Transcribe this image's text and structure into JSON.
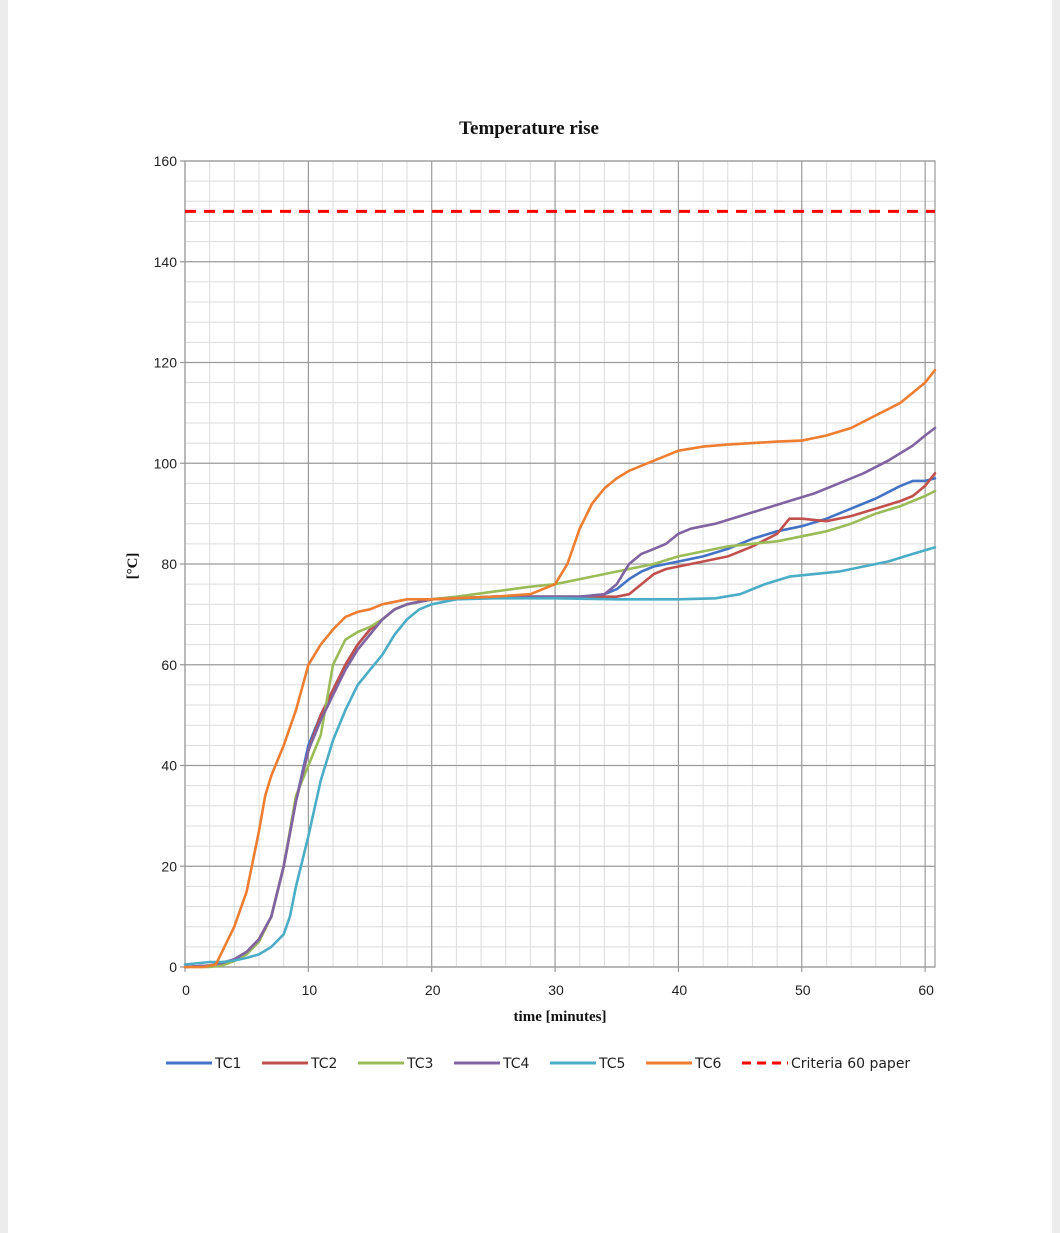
{
  "chart_data": {
    "type": "line",
    "title": "Temperature rise",
    "xlabel": "time [minutes]",
    "ylabel": "[°C]",
    "xlim": [
      0,
      60.8
    ],
    "ylim": [
      0,
      160
    ],
    "x_ticks": [
      0,
      10,
      20,
      30,
      40,
      50,
      60
    ],
    "y_ticks": [
      0,
      20,
      40,
      60,
      80,
      100,
      120,
      140,
      160
    ],
    "grid": true,
    "minor_grid": true,
    "legend_position": "bottom",
    "series": [
      {
        "name": "TC1",
        "color": "#4472c4",
        "style": "solid",
        "points": [
          [
            0,
            0
          ],
          [
            2,
            0.3
          ],
          [
            3,
            0.8
          ],
          [
            4,
            1.5
          ],
          [
            5,
            3
          ],
          [
            6,
            5.5
          ],
          [
            7,
            10
          ],
          [
            8,
            20
          ],
          [
            9,
            33
          ],
          [
            10,
            44
          ],
          [
            11,
            50
          ],
          [
            12,
            55
          ],
          [
            13,
            60
          ],
          [
            14,
            64
          ],
          [
            15,
            67
          ],
          [
            16,
            69
          ],
          [
            17,
            71
          ],
          [
            18,
            72
          ],
          [
            20,
            73
          ],
          [
            25,
            73.5
          ],
          [
            30,
            73.5
          ],
          [
            33,
            73.5
          ],
          [
            34,
            74
          ],
          [
            35,
            75
          ],
          [
            36,
            77
          ],
          [
            37,
            78.5
          ],
          [
            38,
            79.5
          ],
          [
            40,
            80.5
          ],
          [
            42,
            81.5
          ],
          [
            44,
            83
          ],
          [
            46,
            85
          ],
          [
            48,
            86.5
          ],
          [
            50,
            87.5
          ],
          [
            52,
            89
          ],
          [
            54,
            91
          ],
          [
            56,
            93
          ],
          [
            58,
            95.5
          ],
          [
            59,
            96.5
          ],
          [
            60,
            96.5
          ],
          [
            60.8,
            97
          ]
        ]
      },
      {
        "name": "TC2",
        "color": "#c0504d",
        "style": "solid",
        "points": [
          [
            0,
            0
          ],
          [
            2,
            0.3
          ],
          [
            3,
            0.8
          ],
          [
            4,
            1.5
          ],
          [
            5,
            3
          ],
          [
            6,
            5.5
          ],
          [
            7,
            10
          ],
          [
            8,
            20
          ],
          [
            9,
            33
          ],
          [
            10,
            43
          ],
          [
            11,
            50
          ],
          [
            12,
            55
          ],
          [
            13,
            60
          ],
          [
            14,
            64
          ],
          [
            15,
            67
          ],
          [
            16,
            69
          ],
          [
            17,
            71
          ],
          [
            18,
            72
          ],
          [
            20,
            73
          ],
          [
            25,
            73.5
          ],
          [
            30,
            73.5
          ],
          [
            34,
            73.5
          ],
          [
            35,
            73.5
          ],
          [
            36,
            74
          ],
          [
            37,
            76
          ],
          [
            38,
            78
          ],
          [
            39,
            79
          ],
          [
            40,
            79.5
          ],
          [
            42,
            80.5
          ],
          [
            44,
            81.5
          ],
          [
            46,
            83.5
          ],
          [
            48,
            86
          ],
          [
            49,
            89
          ],
          [
            50,
            89
          ],
          [
            52,
            88.5
          ],
          [
            54,
            89.5
          ],
          [
            56,
            91
          ],
          [
            58,
            92.5
          ],
          [
            59,
            93.5
          ],
          [
            60,
            95.5
          ],
          [
            60.8,
            98
          ]
        ]
      },
      {
        "name": "TC3",
        "color": "#9bbb59",
        "style": "solid",
        "points": [
          [
            0,
            0
          ],
          [
            2,
            0
          ],
          [
            3,
            0.3
          ],
          [
            4,
            1.2
          ],
          [
            5,
            2.5
          ],
          [
            6,
            5
          ],
          [
            7,
            10
          ],
          [
            8,
            20
          ],
          [
            9,
            34
          ],
          [
            10,
            40
          ],
          [
            11,
            46
          ],
          [
            11.5,
            53
          ],
          [
            12,
            60
          ],
          [
            13,
            65
          ],
          [
            14,
            66.5
          ],
          [
            15,
            67.5
          ],
          [
            16,
            69
          ],
          [
            17,
            71
          ],
          [
            18,
            72
          ],
          [
            20,
            73
          ],
          [
            22,
            73.5
          ],
          [
            25,
            74.5
          ],
          [
            28,
            75.5
          ],
          [
            30,
            76
          ],
          [
            33,
            77.5
          ],
          [
            36,
            79
          ],
          [
            38,
            80
          ],
          [
            40,
            81.5
          ],
          [
            42,
            82.5
          ],
          [
            44,
            83.5
          ],
          [
            46,
            84
          ],
          [
            48,
            84.5
          ],
          [
            50,
            85.5
          ],
          [
            52,
            86.5
          ],
          [
            54,
            88
          ],
          [
            56,
            90
          ],
          [
            58,
            91.5
          ],
          [
            60,
            93.5
          ],
          [
            60.8,
            94.5
          ]
        ]
      },
      {
        "name": "TC4",
        "color": "#8064a2",
        "style": "solid",
        "points": [
          [
            0,
            0
          ],
          [
            2,
            0.3
          ],
          [
            3,
            0.8
          ],
          [
            4,
            1.5
          ],
          [
            5,
            3
          ],
          [
            6,
            5.5
          ],
          [
            7,
            10
          ],
          [
            8,
            20
          ],
          [
            9,
            33
          ],
          [
            10,
            43
          ],
          [
            11,
            49
          ],
          [
            12,
            54
          ],
          [
            13,
            59
          ],
          [
            14,
            63
          ],
          [
            15,
            66
          ],
          [
            16,
            69
          ],
          [
            17,
            71
          ],
          [
            18,
            72
          ],
          [
            20,
            73
          ],
          [
            25,
            73.5
          ],
          [
            30,
            73.5
          ],
          [
            32,
            73.5
          ],
          [
            34,
            74
          ],
          [
            35,
            76
          ],
          [
            36,
            80
          ],
          [
            37,
            82
          ],
          [
            38,
            83
          ],
          [
            39,
            84
          ],
          [
            40,
            86
          ],
          [
            41,
            87
          ],
          [
            43,
            88
          ],
          [
            45,
            89.5
          ],
          [
            47,
            91
          ],
          [
            49,
            92.5
          ],
          [
            51,
            94
          ],
          [
            53,
            96
          ],
          [
            55,
            98
          ],
          [
            57,
            100.5
          ],
          [
            59,
            103.5
          ],
          [
            60,
            105.5
          ],
          [
            60.8,
            107
          ]
        ]
      },
      {
        "name": "TC5",
        "color": "#4bacc6",
        "style": "solid",
        "points": [
          [
            0,
            0.5
          ],
          [
            2,
            1
          ],
          [
            3,
            1
          ],
          [
            4,
            1.3
          ],
          [
            5,
            1.8
          ],
          [
            6,
            2.5
          ],
          [
            7,
            4
          ],
          [
            8,
            6.5
          ],
          [
            8.5,
            10
          ],
          [
            9,
            16
          ],
          [
            10,
            26
          ],
          [
            11,
            37
          ],
          [
            12,
            45
          ],
          [
            13,
            51
          ],
          [
            14,
            56
          ],
          [
            15,
            59
          ],
          [
            16,
            62
          ],
          [
            17,
            66
          ],
          [
            18,
            69
          ],
          [
            19,
            71
          ],
          [
            20,
            72
          ],
          [
            22,
            73
          ],
          [
            25,
            73.2
          ],
          [
            30,
            73.2
          ],
          [
            35,
            73
          ],
          [
            40,
            73
          ],
          [
            43,
            73.2
          ],
          [
            45,
            74
          ],
          [
            47,
            76
          ],
          [
            49,
            77.5
          ],
          [
            51,
            78
          ],
          [
            53,
            78.5
          ],
          [
            55,
            79.5
          ],
          [
            57,
            80.5
          ],
          [
            59,
            82
          ],
          [
            60.8,
            83.3
          ]
        ]
      },
      {
        "name": "TC6",
        "color": "#ed7d31",
        "style": "solid",
        "points": [
          [
            0,
            0
          ],
          [
            1.5,
            0
          ],
          [
            2.5,
            0.5
          ],
          [
            3,
            3
          ],
          [
            4,
            8
          ],
          [
            5,
            15
          ],
          [
            6,
            27
          ],
          [
            6.5,
            34
          ],
          [
            7,
            38
          ],
          [
            8,
            44
          ],
          [
            9,
            51
          ],
          [
            10,
            60
          ],
          [
            11,
            64
          ],
          [
            12,
            67
          ],
          [
            13,
            69.5
          ],
          [
            14,
            70.5
          ],
          [
            15,
            71
          ],
          [
            16,
            72
          ],
          [
            17,
            72.5
          ],
          [
            18,
            73
          ],
          [
            20,
            73
          ],
          [
            25,
            73.5
          ],
          [
            28,
            74
          ],
          [
            30,
            76
          ],
          [
            31,
            80
          ],
          [
            32,
            87
          ],
          [
            33,
            92
          ],
          [
            34,
            95
          ],
          [
            35,
            97
          ],
          [
            36,
            98.5
          ],
          [
            38,
            100.5
          ],
          [
            40,
            102.5
          ],
          [
            42,
            103.3
          ],
          [
            44,
            103.7
          ],
          [
            46,
            104
          ],
          [
            48,
            104.3
          ],
          [
            50,
            104.5
          ],
          [
            52,
            105.5
          ],
          [
            54,
            107
          ],
          [
            56,
            109.5
          ],
          [
            58,
            112
          ],
          [
            59,
            114
          ],
          [
            60,
            116
          ],
          [
            60.8,
            118.5
          ]
        ]
      },
      {
        "name": "Criteria 60 paper",
        "color": "#ff0000",
        "style": "dashed",
        "points": [
          [
            0,
            150
          ],
          [
            60.8,
            150
          ]
        ]
      }
    ]
  }
}
